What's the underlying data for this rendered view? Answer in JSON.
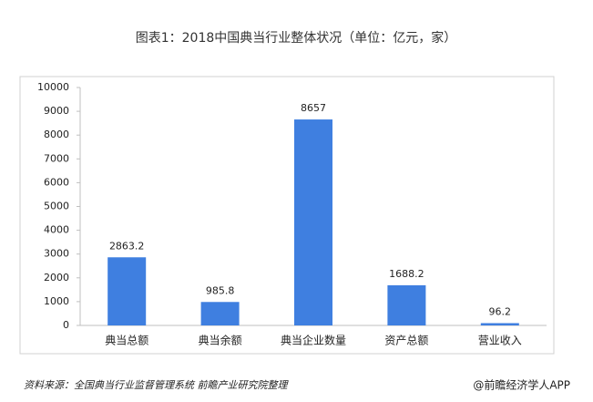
{
  "chart_data": {
    "type": "bar",
    "title": "图表1：2018中国典当行业整体状况（单位：亿元，家）",
    "categories": [
      "典当总额",
      "典当余额",
      "典当企业数量",
      "资产总额",
      "营业收入"
    ],
    "values": [
      2863.2,
      985.8,
      8657,
      1688.2,
      96.2
    ],
    "color": "#3f7fe0",
    "ylim": [
      0,
      10000
    ],
    "yticks": [
      0,
      1000,
      2000,
      3000,
      4000,
      5000,
      6000,
      7000,
      8000,
      9000,
      10000
    ],
    "source": "资料来源：全国典当行业监督管理系统 前瞻产业研究院整理",
    "credit": "@前瞻经济学人APP"
  }
}
